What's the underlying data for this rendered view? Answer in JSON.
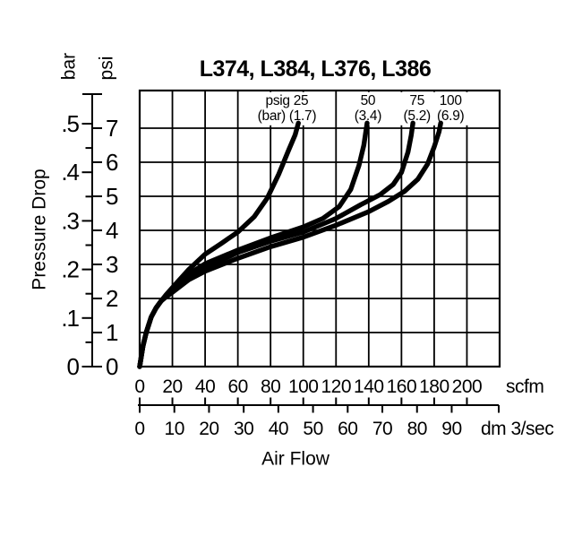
{
  "title": "L374, L384, L376, L386",
  "colors": {
    "ink": "#000000",
    "background": "#ffffff"
  },
  "y_axis": {
    "label": "Pressure Drop",
    "unit_left": "bar",
    "unit_right": "psi",
    "bar_ticks": [
      {
        "v": 0.5,
        "t": ".5"
      },
      {
        "v": 0.4,
        "t": ".4"
      },
      {
        "v": 0.3,
        "t": ".3"
      },
      {
        "v": 0.2,
        "t": ".2"
      },
      {
        "v": 0.1,
        "t": ".1"
      },
      {
        "v": 0,
        "t": "0"
      }
    ],
    "bar_minor_ticks": [
      0.05,
      0.15,
      0.25,
      0.35,
      0.45
    ],
    "psi_ticks": [
      0,
      1,
      2,
      3,
      4,
      5,
      6,
      7
    ]
  },
  "x_axis": {
    "label": "Air Flow",
    "scfm": {
      "unit": "scfm",
      "ticks": [
        0,
        20,
        40,
        60,
        80,
        100,
        120,
        140,
        160,
        180,
        200
      ]
    },
    "dm3s": {
      "unit": "dm 3/sec",
      "ticks": [
        0,
        10,
        20,
        30,
        40,
        50,
        60,
        70,
        80,
        90
      ],
      "scfm_per_unit": 2.1189
    }
  },
  "chart_data": {
    "type": "line",
    "title": "L374, L384, L376, L386",
    "xlabel": "Air Flow",
    "ylabel": "Pressure Drop",
    "x_units": [
      "scfm",
      "dm 3/sec"
    ],
    "y_units": [
      "bar",
      "psi"
    ],
    "xlim_scfm": [
      0,
      220
    ],
    "ylim_psi": [
      0,
      8.1
    ],
    "grid": "on",
    "legend_position": "labels-above-curves",
    "series": [
      {
        "psig": 25,
        "name": "inlet pressure psig 25 (bar 1.7)",
        "label_line1": "psig 25",
        "label_line2": "(bar) (1.7)",
        "label_at_scfm": 90,
        "points_scfm_psi": [
          [
            0,
            0
          ],
          [
            2,
            0.6
          ],
          [
            4,
            1.0
          ],
          [
            7,
            1.45
          ],
          [
            10,
            1.72
          ],
          [
            13,
            1.92
          ],
          [
            16,
            2.1
          ],
          [
            20,
            2.32
          ],
          [
            30,
            2.85
          ],
          [
            40,
            3.3
          ],
          [
            50,
            3.62
          ],
          [
            60,
            3.95
          ],
          [
            70,
            4.4
          ],
          [
            78,
            4.95
          ],
          [
            85,
            5.65
          ],
          [
            91,
            6.35
          ],
          [
            95,
            6.8
          ],
          [
            97,
            7.15
          ]
        ]
      },
      {
        "psig": 50,
        "name": "inlet pressure psig 50 (bar 3.4)",
        "label_line1": "50",
        "label_line2": "(3.4)",
        "label_at_scfm": 139.5,
        "points_scfm_psi": [
          [
            0,
            0
          ],
          [
            2,
            0.6
          ],
          [
            4,
            1.0
          ],
          [
            7,
            1.45
          ],
          [
            10,
            1.72
          ],
          [
            13,
            1.92
          ],
          [
            16,
            2.08
          ],
          [
            20,
            2.28
          ],
          [
            30,
            2.72
          ],
          [
            40,
            3.02
          ],
          [
            60,
            3.42
          ],
          [
            80,
            3.78
          ],
          [
            100,
            4.1
          ],
          [
            112,
            4.35
          ],
          [
            122,
            4.7
          ],
          [
            129,
            5.2
          ],
          [
            134,
            5.9
          ],
          [
            137,
            6.5
          ],
          [
            139,
            7.15
          ]
        ]
      },
      {
        "psig": 75,
        "name": "inlet pressure psig 75 (bar 5.2)",
        "label_line1": "75",
        "label_line2": "(5.2)",
        "label_at_scfm": 169.5,
        "points_scfm_psi": [
          [
            0,
            0
          ],
          [
            2,
            0.6
          ],
          [
            4,
            1.0
          ],
          [
            7,
            1.45
          ],
          [
            10,
            1.72
          ],
          [
            13,
            1.92
          ],
          [
            16,
            2.06
          ],
          [
            20,
            2.24
          ],
          [
            30,
            2.62
          ],
          [
            40,
            2.9
          ],
          [
            60,
            3.35
          ],
          [
            80,
            3.68
          ],
          [
            100,
            3.95
          ],
          [
            120,
            4.35
          ],
          [
            135,
            4.75
          ],
          [
            147,
            5.05
          ],
          [
            155,
            5.35
          ],
          [
            160,
            5.7
          ],
          [
            164,
            6.3
          ],
          [
            166,
            6.8
          ],
          [
            167,
            7.15
          ]
        ]
      },
      {
        "psig": 100,
        "name": "inlet pressure psig 100 (bar 6.9)",
        "label_line1": "100",
        "label_line2": "(6.9)",
        "label_at_scfm": 190,
        "points_scfm_psi": [
          [
            0,
            0
          ],
          [
            2,
            0.6
          ],
          [
            4,
            1.0
          ],
          [
            7,
            1.45
          ],
          [
            10,
            1.72
          ],
          [
            13,
            1.92
          ],
          [
            16,
            2.04
          ],
          [
            20,
            2.18
          ],
          [
            30,
            2.55
          ],
          [
            40,
            2.8
          ],
          [
            60,
            3.18
          ],
          [
            80,
            3.52
          ],
          [
            100,
            3.8
          ],
          [
            120,
            4.15
          ],
          [
            140,
            4.55
          ],
          [
            152,
            4.85
          ],
          [
            162,
            5.15
          ],
          [
            170,
            5.5
          ],
          [
            176,
            5.95
          ],
          [
            180,
            6.45
          ],
          [
            183,
            6.9
          ],
          [
            184,
            7.15
          ]
        ]
      }
    ]
  }
}
